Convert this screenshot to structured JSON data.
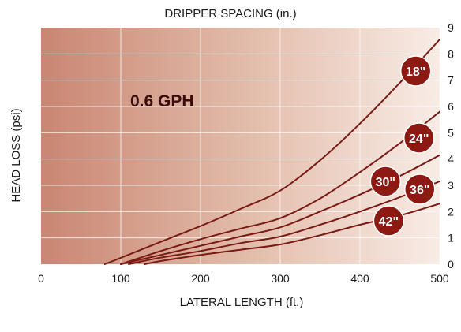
{
  "chart_data": {
    "type": "line",
    "title": "DRIPPER SPACING (in.)",
    "xlabel": "LATERAL LENGTH (ft.)",
    "ylabel": "HEAD LOSS (psi)",
    "annotation": "0.6 GPH",
    "xlim": [
      0,
      500
    ],
    "ylim": [
      0,
      9
    ],
    "x_ticks": [
      0,
      100,
      200,
      300,
      400,
      500
    ],
    "y_ticks": [
      0,
      1,
      2,
      3,
      4,
      5,
      6,
      7,
      8,
      9
    ],
    "grid": true,
    "colors": {
      "line": "#7a1a14",
      "badge": "#8c1a12",
      "grid": "#ffffff",
      "bg_left": "#c98672",
      "bg_right": "#f8ece6"
    },
    "series": [
      {
        "name": "18\"",
        "x": [
          80,
          150,
          200,
          250,
          300,
          350,
          400,
          450,
          500
        ],
        "y": [
          0,
          0.85,
          1.45,
          2.1,
          2.8,
          3.95,
          5.35,
          6.9,
          8.55
        ]
      },
      {
        "name": "24\"",
        "x": [
          100,
          150,
          200,
          250,
          300,
          350,
          400,
          450,
          500
        ],
        "y": [
          0,
          0.5,
          0.95,
          1.35,
          1.75,
          2.5,
          3.5,
          4.6,
          5.8
        ]
      },
      {
        "name": "30\"",
        "x": [
          100,
          150,
          200,
          250,
          300,
          350,
          400,
          450,
          500
        ],
        "y": [
          0,
          0.35,
          0.7,
          1.05,
          1.4,
          2.0,
          2.65,
          3.35,
          4.15
        ]
      },
      {
        "name": "36\"",
        "x": [
          110,
          150,
          200,
          250,
          300,
          350,
          400,
          450,
          500
        ],
        "y": [
          0,
          0.25,
          0.5,
          0.8,
          1.05,
          1.5,
          2.0,
          2.55,
          3.15
        ]
      },
      {
        "name": "42\"",
        "x": [
          130,
          150,
          200,
          250,
          300,
          350,
          400,
          450,
          500
        ],
        "y": [
          0,
          0.12,
          0.35,
          0.55,
          0.75,
          1.1,
          1.5,
          1.85,
          2.3
        ]
      }
    ],
    "badges": [
      {
        "label": "18\"",
        "x": 470,
        "y": 7.35
      },
      {
        "label": "24\"",
        "x": 474,
        "y": 4.8
      },
      {
        "label": "30\"",
        "x": 432,
        "y": 3.15
      },
      {
        "label": "36\"",
        "x": 475,
        "y": 2.85
      },
      {
        "label": "42\"",
        "x": 436,
        "y": 1.65
      }
    ]
  }
}
